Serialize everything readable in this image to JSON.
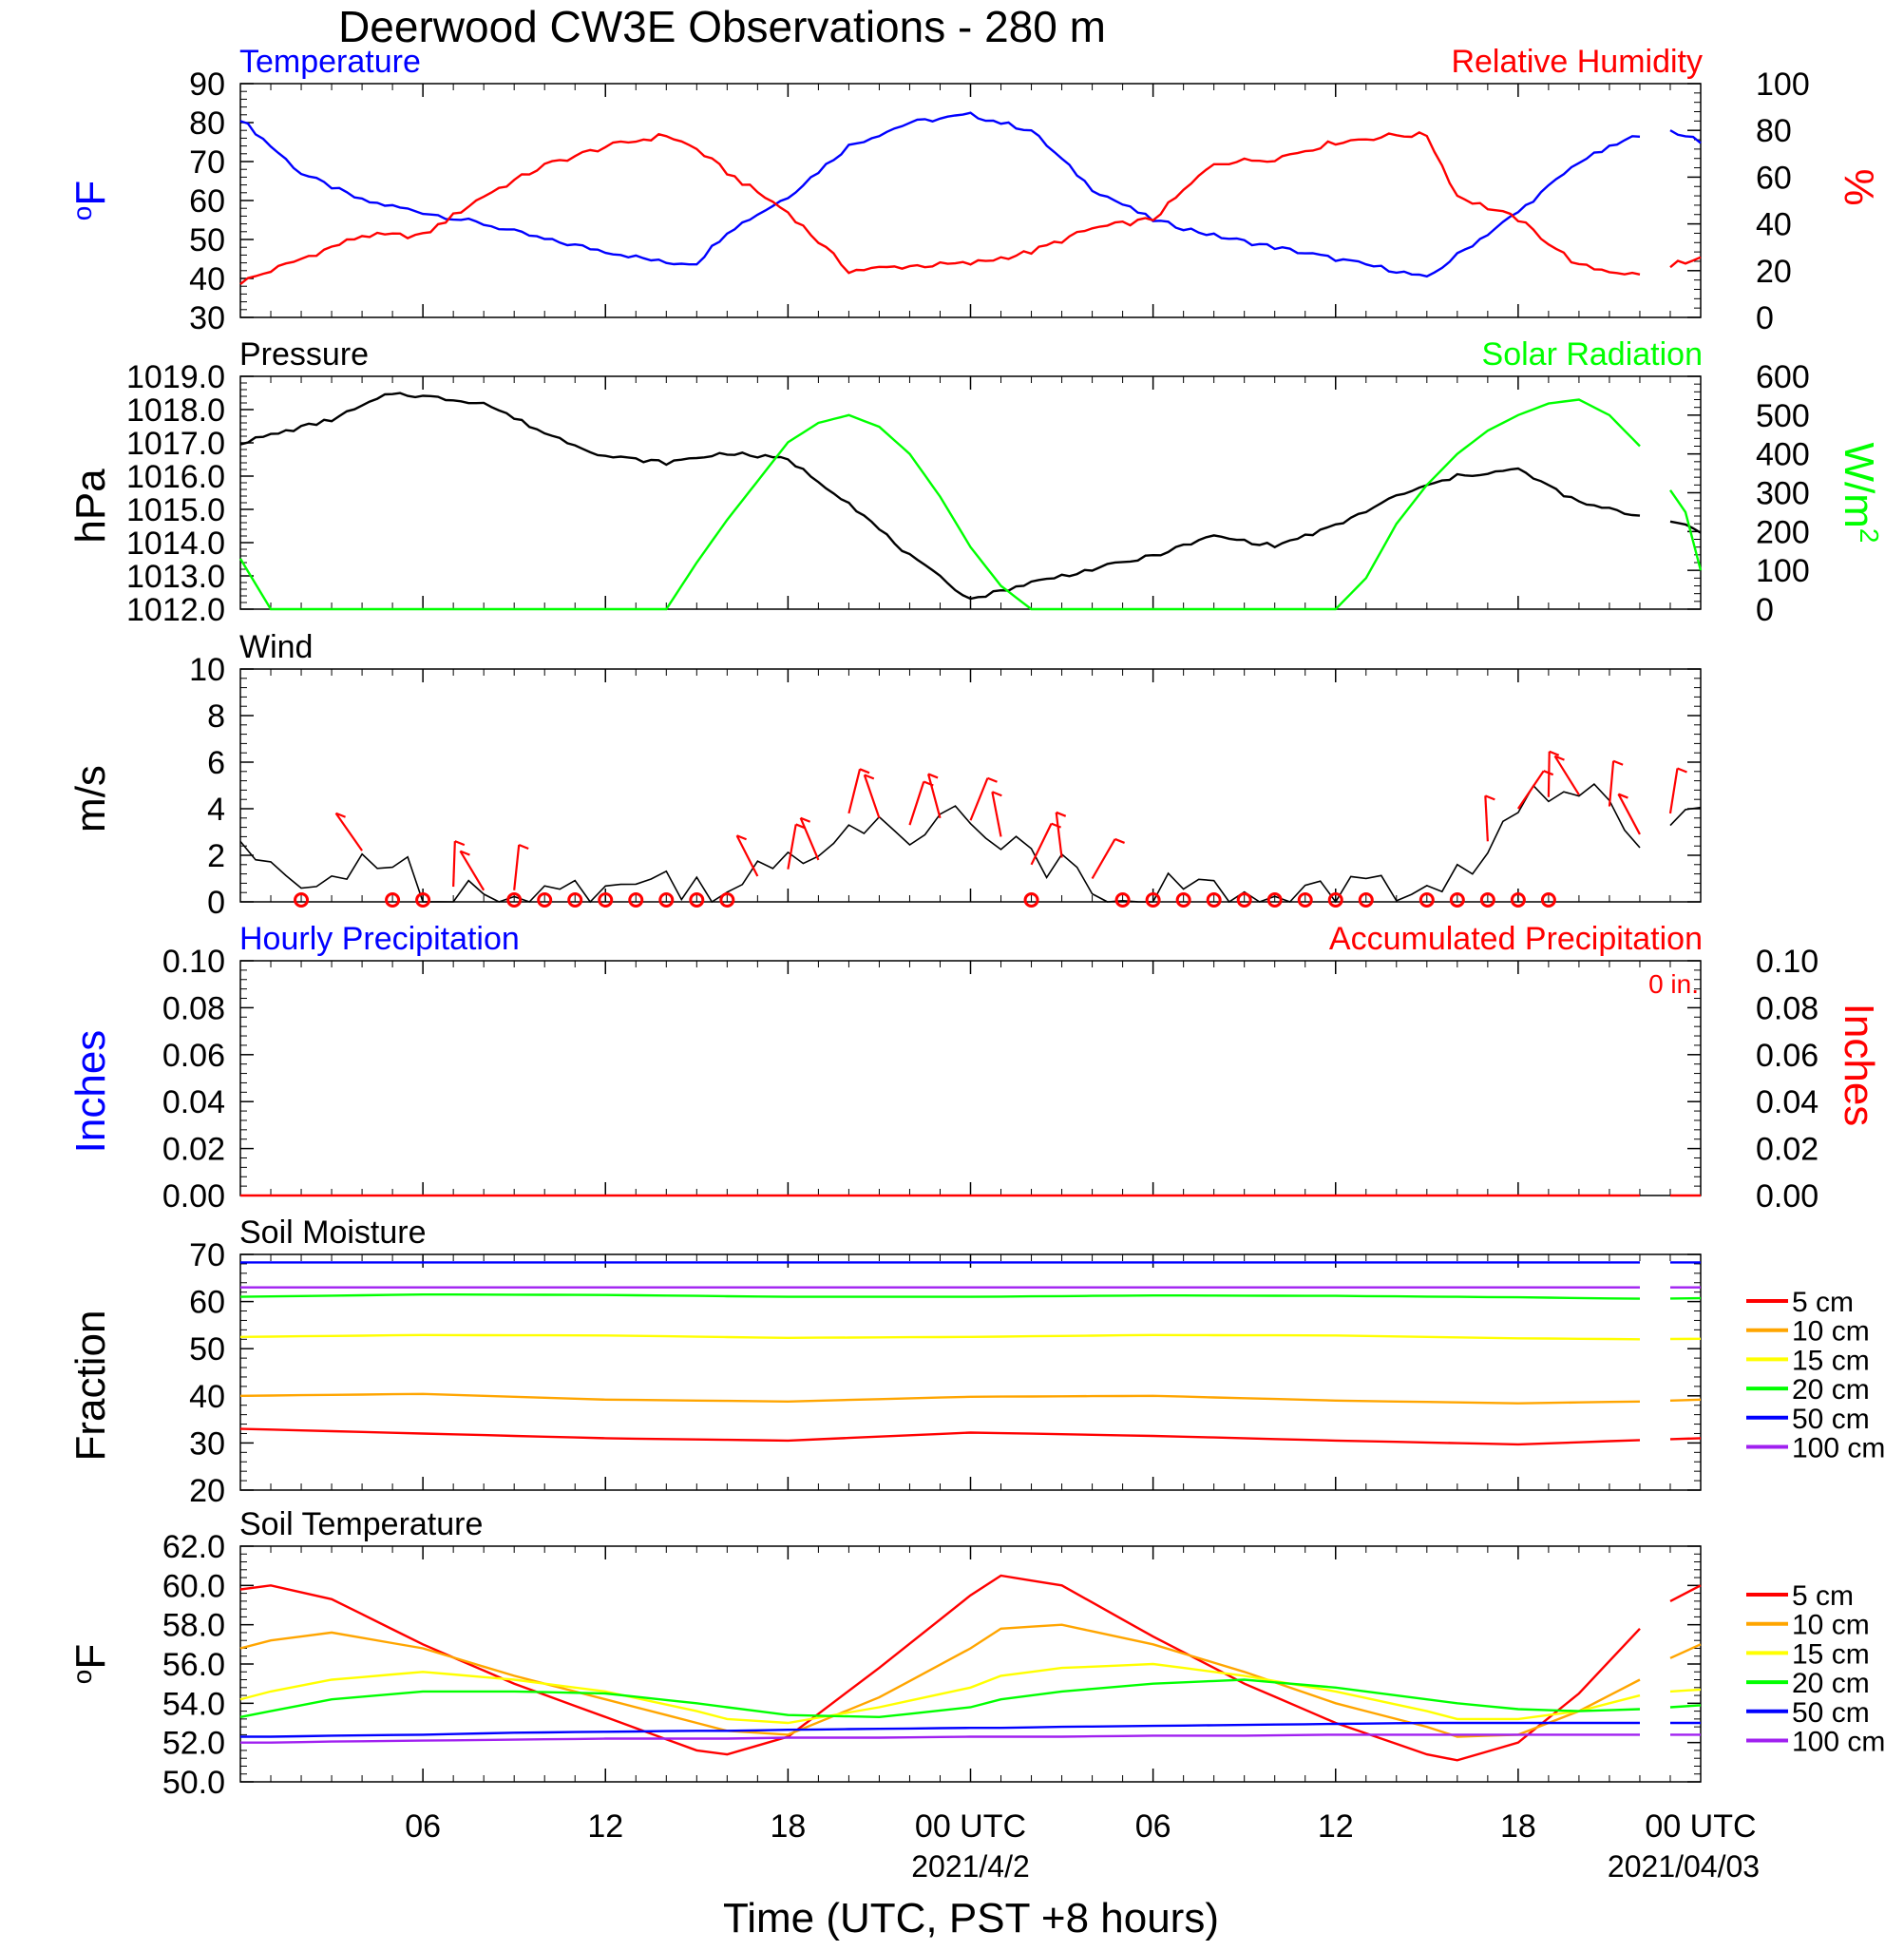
{
  "title": "Deerwood CW3E Observations - 280 m",
  "xlabel": "Time (UTC, PST +8 hours)",
  "x_ticks": [
    "06",
    "12",
    "18",
    "00 UTC",
    "06",
    "12",
    "18",
    "00 UTC"
  ],
  "x_dates": [
    "2021/4/2",
    "2021/04/03"
  ],
  "colors": {
    "temperature": "#0000ff",
    "humidity": "#ff0000",
    "pressure": "#000000",
    "solar": "#00ff00",
    "wind": "#000000",
    "barb": "#ff0000",
    "hourly_precip": "#0000ff",
    "accum_precip": "#ff0000",
    "d5": "#ff0000",
    "d10": "#ffa500",
    "d15": "#ffff00",
    "d20": "#00ff00",
    "d50": "#0000ff",
    "d100": "#a020f0"
  },
  "chart_data": [
    {
      "id": "temp_rh",
      "type": "line",
      "left_title": "Temperature",
      "right_title": "Relative Humidity",
      "left_label": "oF",
      "right_label": "%",
      "left_ylim": [
        30,
        90
      ],
      "right_ylim": [
        0,
        100
      ],
      "left_ticks": [
        "90",
        "80",
        "70",
        "60",
        "50",
        "40",
        "30"
      ],
      "right_ticks": [
        "100",
        "80",
        "60",
        "40",
        "20",
        "0"
      ],
      "x_hours": [
        0,
        2,
        4,
        6,
        8,
        10,
        12,
        14,
        15,
        16,
        18,
        20,
        22,
        24,
        26,
        28,
        30,
        32,
        34,
        36,
        38,
        39,
        40,
        42,
        44,
        46,
        46.5,
        47.5,
        48
      ],
      "series": [
        {
          "name": "Temperature",
          "color_key": "temperature",
          "axis": "left",
          "values": [
            81,
            67,
            60,
            57,
            54,
            50,
            47,
            44,
            44,
            52,
            61,
            74,
            80,
            82,
            78,
            63,
            55,
            51,
            48,
            45,
            42,
            40,
            46,
            57,
            70,
            77,
            78,
            77,
            75
          ]
        },
        {
          "name": "Relative Humidity",
          "color_key": "humidity",
          "axis": "right",
          "values": [
            15,
            25,
            35,
            35,
            52,
            65,
            73,
            78,
            72,
            62,
            45,
            20,
            22,
            23,
            28,
            38,
            42,
            66,
            68,
            75,
            78,
            78,
            52,
            42,
            22,
            18,
            20,
            24,
            25
          ]
        }
      ]
    },
    {
      "id": "pressure_solar",
      "type": "line",
      "left_title": "Pressure",
      "right_title": "Solar Radiation",
      "left_label": "hPa",
      "right_label": "W/m2",
      "left_ylim": [
        1012,
        1019
      ],
      "right_ylim": [
        0,
        600
      ],
      "left_ticks": [
        "1019.0",
        "1018.0",
        "1017.0",
        "1016.0",
        "1015.0",
        "1014.0",
        "1013.0",
        "1012.0"
      ],
      "right_ticks": [
        "600",
        "500",
        "400",
        "300",
        "200",
        "100",
        "0"
      ],
      "series": [
        {
          "name": "Pressure",
          "color_key": "pressure",
          "axis": "left",
          "x_hours": [
            0,
            3,
            5,
            8,
            10,
            12,
            14,
            16,
            18,
            20,
            22,
            24,
            26,
            28,
            30,
            32,
            34,
            36,
            38,
            40,
            42,
            44,
            46,
            47.5,
            48
          ],
          "values": [
            1017.0,
            1017.7,
            1018.5,
            1018.2,
            1017.3,
            1016.6,
            1016.4,
            1016.7,
            1016.5,
            1015.2,
            1013.6,
            1012.3,
            1012.8,
            1013.2,
            1013.6,
            1014.2,
            1013.9,
            1014.5,
            1015.4,
            1016.0,
            1016.2,
            1015.2,
            1014.8,
            1014.5,
            1014.3
          ]
        },
        {
          "name": "Solar Radiation",
          "color_key": "solar",
          "axis": "right",
          "x_hours": [
            0,
            1,
            2,
            13,
            14,
            15,
            16,
            18,
            19,
            20,
            21,
            22,
            23,
            24,
            25,
            26,
            27,
            28,
            36,
            37,
            38,
            39,
            40,
            41,
            42,
            43,
            44,
            45,
            46,
            47.5,
            48
          ],
          "values": [
            130,
            0,
            0,
            0,
            0,
            120,
            230,
            430,
            480,
            500,
            470,
            400,
            290,
            160,
            60,
            0,
            0,
            0,
            0,
            80,
            220,
            320,
            400,
            460,
            500,
            530,
            540,
            500,
            420,
            250,
            100
          ]
        }
      ]
    },
    {
      "id": "wind",
      "type": "line",
      "left_title": "Wind",
      "right_title": "",
      "left_label": "m/s",
      "right_label": "",
      "left_ylim": [
        0,
        10
      ],
      "right_ylim": null,
      "left_ticks": [
        "10",
        "8",
        "6",
        "4",
        "2",
        "0"
      ],
      "right_ticks": [],
      "x_hours": [
        0,
        1,
        2,
        3,
        4,
        6,
        8,
        10,
        12,
        14,
        16,
        18,
        19,
        20,
        21,
        22,
        23,
        24,
        25,
        26,
        27,
        28,
        29,
        30,
        32,
        34,
        36,
        38,
        39,
        40,
        41,
        42,
        43,
        44,
        45,
        46,
        47,
        48
      ],
      "series": [
        {
          "name": "Wind",
          "color_key": "wind",
          "axis": "left",
          "values": [
            2.6,
            1.0,
            0.4,
            1.0,
            2.2,
            0.8,
            0.5,
            0.5,
            0.5,
            0.9,
            0.8,
            1.4,
            1.8,
            3.8,
            3.6,
            3.3,
            3.6,
            3.5,
            2.8,
            1.6,
            1.9,
            1.0,
            0.6,
            0.5,
            0.4,
            0.4,
            0.5,
            0.5,
            0.6,
            1.0,
            2.6,
            4.0,
            4.5,
            4.6,
            4.1,
            2.9,
            3.8,
            4.2
          ]
        }
      ],
      "calm_hours": [
        2,
        5,
        6,
        9,
        10,
        11,
        12,
        13,
        14,
        15,
        16,
        26,
        29,
        30,
        31,
        32,
        33,
        34,
        35,
        36,
        37,
        39,
        40,
        41,
        42,
        43
      ],
      "barb_hours": [
        4,
        7,
        8,
        9,
        17,
        18,
        19,
        20,
        21,
        22,
        23,
        24,
        25,
        26,
        27,
        28,
        41,
        42,
        43,
        44,
        45,
        46,
        47
      ]
    },
    {
      "id": "precip",
      "type": "line",
      "left_title": "Hourly Precipitation",
      "right_title": "Accumulated Precipitation",
      "left_label": "Inches",
      "right_label": "Inches",
      "accum_total": "0 in.",
      "left_ylim": [
        0,
        0.1
      ],
      "right_ylim": [
        0,
        0.1
      ],
      "left_ticks": [
        "0.10",
        "0.08",
        "0.06",
        "0.04",
        "0.02",
        "0.00"
      ],
      "right_ticks": [
        "0.10",
        "0.08",
        "0.06",
        "0.04",
        "0.02",
        "0.00"
      ],
      "x_hours": [
        0,
        48
      ],
      "series": [
        {
          "name": "Accumulated Precipitation",
          "color_key": "accum_precip",
          "axis": "right",
          "values": [
            0,
            0
          ]
        }
      ]
    },
    {
      "id": "soil_moisture",
      "type": "line",
      "left_title": "Soil Moisture",
      "right_title": "",
      "left_label": "Fraction",
      "right_label": "",
      "left_ylim": [
        20,
        70
      ],
      "right_ylim": null,
      "left_ticks": [
        "70",
        "60",
        "50",
        "40",
        "30",
        "20"
      ],
      "right_ticks": [],
      "legend": [
        "5 cm",
        "10 cm",
        "15 cm",
        "20 cm",
        "50 cm",
        "100 cm"
      ],
      "x_hours": [
        0,
        6,
        12,
        18,
        24,
        30,
        36,
        42,
        46,
        48
      ],
      "series": [
        {
          "name": "5 cm",
          "color_key": "d5",
          "axis": "left",
          "values": [
            33,
            32,
            31,
            30.5,
            32.2,
            31.5,
            30.5,
            29.7,
            30.6,
            31
          ]
        },
        {
          "name": "10 cm",
          "color_key": "d10",
          "axis": "left",
          "values": [
            40,
            40.4,
            39.2,
            38.8,
            39.8,
            40,
            39,
            38.4,
            38.8,
            39.2
          ]
        },
        {
          "name": "15 cm",
          "color_key": "d15",
          "axis": "left",
          "values": [
            52.5,
            52.9,
            52.8,
            52.3,
            52.5,
            52.9,
            52.8,
            52.2,
            52,
            52.1
          ]
        },
        {
          "name": "20 cm",
          "color_key": "d20",
          "axis": "left",
          "values": [
            61,
            61.5,
            61.4,
            61,
            61,
            61.3,
            61.2,
            60.9,
            60.6,
            60.7
          ]
        },
        {
          "name": "50 cm",
          "color_key": "d50",
          "axis": "left",
          "values": [
            68.3,
            68.3,
            68.3,
            68.3,
            68.3,
            68.3,
            68.3,
            68.3,
            68.3,
            68.3
          ]
        },
        {
          "name": "100 cm",
          "color_key": "d100",
          "axis": "left",
          "values": [
            63,
            63,
            63,
            63,
            63,
            63,
            63,
            63,
            63,
            63
          ]
        }
      ]
    },
    {
      "id": "soil_temperature",
      "type": "line",
      "left_title": "Soil Temperature",
      "right_title": "",
      "left_label": "oF",
      "right_label": "",
      "left_ylim": [
        50,
        62
      ],
      "right_ylim": null,
      "left_ticks": [
        "62.0",
        "60.0",
        "58.0",
        "56.0",
        "54.0",
        "52.0",
        "50.0"
      ],
      "right_ticks": [],
      "legend": [
        "5 cm",
        "10 cm",
        "15 cm",
        "20 cm",
        "50 cm",
        "100 cm"
      ],
      "x_hours": [
        0,
        1,
        3,
        6,
        9,
        12,
        15,
        16,
        18,
        21,
        24,
        25,
        27,
        30,
        33,
        36,
        39,
        40,
        42,
        44,
        46,
        47,
        48
      ],
      "series": [
        {
          "name": "5 cm",
          "color_key": "d5",
          "axis": "left",
          "values": [
            59.8,
            60,
            59.3,
            57,
            55,
            53.3,
            51.6,
            51.4,
            52.3,
            55.8,
            59.5,
            60.5,
            60,
            57.4,
            55,
            53,
            51.4,
            51.1,
            52,
            54.5,
            57.8,
            59.2,
            60
          ]
        },
        {
          "name": "10 cm",
          "color_key": "d10",
          "axis": "left",
          "values": [
            56.8,
            57.2,
            57.6,
            56.8,
            55.4,
            54.2,
            53,
            52.6,
            52.4,
            54.3,
            56.8,
            57.8,
            58,
            57,
            55.6,
            54,
            52.8,
            52.3,
            52.4,
            53.6,
            55.2,
            56.3,
            57
          ]
        },
        {
          "name": "15 cm",
          "color_key": "d15",
          "axis": "left",
          "values": [
            54.2,
            54.6,
            55.2,
            55.6,
            55.2,
            54.6,
            53.6,
            53.2,
            53,
            53.8,
            54.8,
            55.4,
            55.8,
            56,
            55.4,
            54.6,
            53.6,
            53.2,
            53.2,
            53.6,
            54.4,
            54.6,
            54.7
          ]
        },
        {
          "name": "20 cm",
          "color_key": "d20",
          "axis": "left",
          "values": [
            53.3,
            53.6,
            54.2,
            54.6,
            54.6,
            54.5,
            54,
            53.8,
            53.4,
            53.3,
            53.8,
            54.2,
            54.6,
            55,
            55.2,
            54.8,
            54.2,
            54,
            53.7,
            53.6,
            53.7,
            53.8,
            53.9
          ]
        },
        {
          "name": "50 cm",
          "color_key": "d50",
          "axis": "left",
          "values": [
            52.3,
            52.3,
            52.35,
            52.4,
            52.5,
            52.55,
            52.6,
            52.6,
            52.65,
            52.7,
            52.75,
            52.75,
            52.8,
            52.85,
            52.9,
            52.95,
            53,
            53,
            53,
            53,
            53,
            53,
            53
          ]
        },
        {
          "name": "100 cm",
          "color_key": "d100",
          "axis": "left",
          "values": [
            52,
            52,
            52.05,
            52.1,
            52.15,
            52.2,
            52.2,
            52.2,
            52.25,
            52.25,
            52.3,
            52.3,
            52.3,
            52.35,
            52.35,
            52.4,
            52.4,
            52.4,
            52.4,
            52.4,
            52.4,
            52.4,
            52.4
          ]
        }
      ]
    }
  ]
}
